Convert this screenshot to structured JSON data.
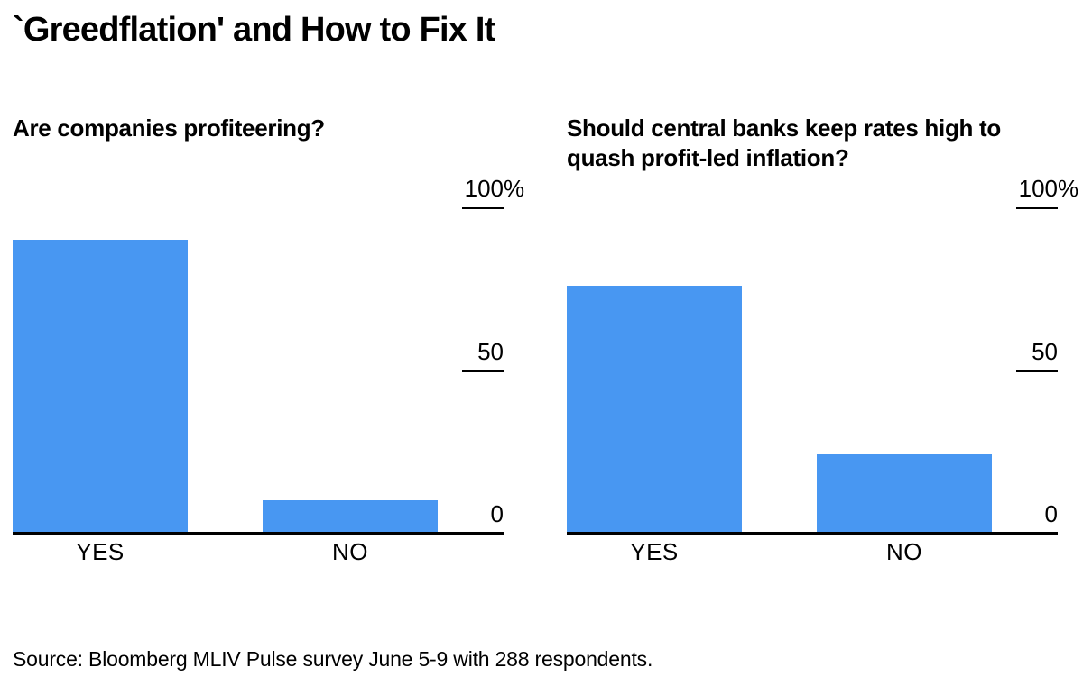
{
  "page": {
    "title": "`Greedflation' and How to Fix It",
    "source": "Source: Bloomberg MLIV Pulse survey June 5-9 with 288 respondents."
  },
  "colors": {
    "bar": "#4897F2",
    "axis": "#000000",
    "text": "#000000",
    "background": "#ffffff"
  },
  "chart_data": [
    {
      "type": "bar",
      "title": "Are companies profiteering?",
      "title_lines": [
        "Are companies profiteering?"
      ],
      "categories": [
        "YES",
        "NO"
      ],
      "values": [
        90,
        10
      ],
      "unit": "%",
      "xlabel": "",
      "ylabel": "",
      "ylim": [
        0,
        100
      ],
      "yticks": [
        {
          "value": 100,
          "label": "100",
          "suffix": "%"
        },
        {
          "value": 50,
          "label": "50",
          "suffix": ""
        },
        {
          "value": 0,
          "label": "0",
          "suffix": ""
        }
      ],
      "grid": false,
      "legend": false,
      "axis_side": "right"
    },
    {
      "type": "bar",
      "title": "Should central banks keep rates high to quash profit-led inflation?",
      "title_lines": [
        "Should central banks keep rates high to",
        "quash profit-led inflation?"
      ],
      "categories": [
        "YES",
        "NO"
      ],
      "values": [
        76,
        24
      ],
      "unit": "%",
      "xlabel": "",
      "ylabel": "",
      "ylim": [
        0,
        100
      ],
      "yticks": [
        {
          "value": 100,
          "label": "100",
          "suffix": "%"
        },
        {
          "value": 50,
          "label": "50",
          "suffix": ""
        },
        {
          "value": 0,
          "label": "0",
          "suffix": ""
        }
      ],
      "grid": false,
      "legend": false,
      "axis_side": "right"
    }
  ]
}
